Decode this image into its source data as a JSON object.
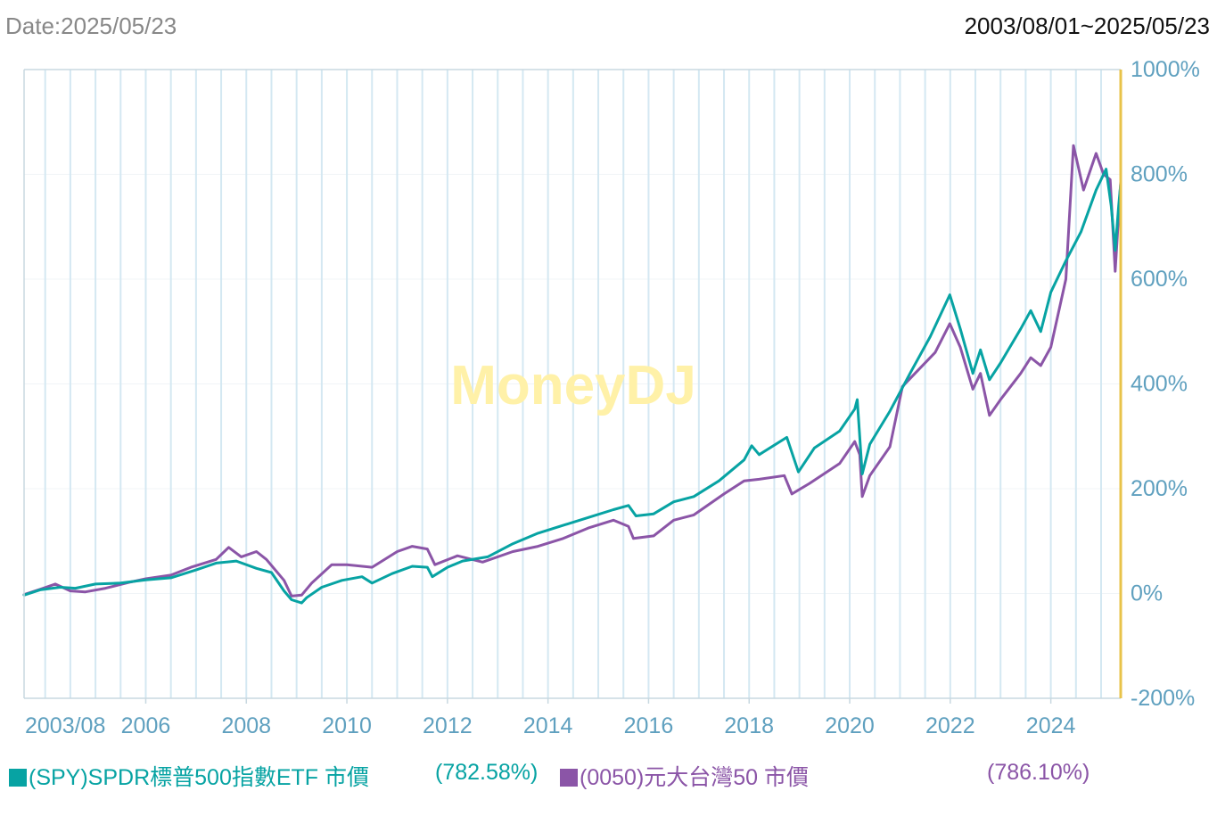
{
  "header": {
    "date_label": "Date:2025/05/23",
    "range_label": "2003/08/01~2025/05/23"
  },
  "watermark": "MoneyDJ",
  "legend": {
    "spy_label": "(SPY)SPDR標普500指數ETF 市價",
    "spy_return": "(782.58%)",
    "etf0050_label": "(0050)元大台灣50 市價",
    "etf0050_return": "(786.10%)"
  },
  "colors": {
    "spy": "#07a3a3",
    "etf0050": "#8b55a7",
    "axis_text": "#5fa0bf",
    "right_axis": "#e8c34a",
    "grid_vertical": "#d4e8f2",
    "grid_horizontal": "#f0f4f7",
    "watermark": "#fff1a8"
  },
  "chart_data": {
    "type": "line",
    "title": "",
    "xlabel": "",
    "ylabel": "",
    "x_ticks": [
      "2003/08",
      "2006",
      "2008",
      "2010",
      "2012",
      "2014",
      "2016",
      "2018",
      "2020",
      "2022",
      "2024"
    ],
    "y_ticks": [
      "1000%",
      "800%",
      "600%",
      "400%",
      "200%",
      "0%",
      "-200%"
    ],
    "xlim": [
      2003.58,
      2025.39
    ],
    "ylim": [
      -200,
      1000
    ],
    "y_unit": "%",
    "grid": true,
    "legend_position": "bottom",
    "series": [
      {
        "name": "(SPY)SPDR標普500指數ETF 市價",
        "color_key": "spy",
        "points": [
          [
            2003.58,
            -3
          ],
          [
            2003.9,
            7
          ],
          [
            2004.3,
            12
          ],
          [
            2004.6,
            10
          ],
          [
            2005.0,
            18
          ],
          [
            2005.5,
            20
          ],
          [
            2006.0,
            26
          ],
          [
            2006.5,
            30
          ],
          [
            2007.0,
            45
          ],
          [
            2007.4,
            58
          ],
          [
            2007.8,
            62
          ],
          [
            2008.2,
            48
          ],
          [
            2008.5,
            40
          ],
          [
            2008.75,
            5
          ],
          [
            2008.9,
            -12
          ],
          [
            2009.1,
            -18
          ],
          [
            2009.2,
            -8
          ],
          [
            2009.5,
            12
          ],
          [
            2009.9,
            25
          ],
          [
            2010.3,
            32
          ],
          [
            2010.5,
            20
          ],
          [
            2010.9,
            38
          ],
          [
            2011.3,
            52
          ],
          [
            2011.6,
            50
          ],
          [
            2011.7,
            32
          ],
          [
            2012.0,
            50
          ],
          [
            2012.3,
            62
          ],
          [
            2012.8,
            70
          ],
          [
            2013.3,
            95
          ],
          [
            2013.8,
            115
          ],
          [
            2014.3,
            130
          ],
          [
            2014.8,
            145
          ],
          [
            2015.3,
            160
          ],
          [
            2015.6,
            168
          ],
          [
            2015.75,
            148
          ],
          [
            2016.1,
            152
          ],
          [
            2016.5,
            175
          ],
          [
            2016.9,
            185
          ],
          [
            2017.4,
            215
          ],
          [
            2017.9,
            255
          ],
          [
            2018.05,
            282
          ],
          [
            2018.2,
            265
          ],
          [
            2018.75,
            298
          ],
          [
            2018.98,
            232
          ],
          [
            2019.3,
            278
          ],
          [
            2019.8,
            310
          ],
          [
            2020.1,
            352
          ],
          [
            2020.15,
            370
          ],
          [
            2020.25,
            228
          ],
          [
            2020.4,
            285
          ],
          [
            2020.8,
            348
          ],
          [
            2021.2,
            420
          ],
          [
            2021.6,
            490
          ],
          [
            2021.99,
            570
          ],
          [
            2022.2,
            505
          ],
          [
            2022.45,
            420
          ],
          [
            2022.6,
            465
          ],
          [
            2022.78,
            408
          ],
          [
            2023.0,
            440
          ],
          [
            2023.4,
            505
          ],
          [
            2023.6,
            540
          ],
          [
            2023.8,
            500
          ],
          [
            2024.0,
            575
          ],
          [
            2024.3,
            635
          ],
          [
            2024.6,
            690
          ],
          [
            2024.9,
            770
          ],
          [
            2025.1,
            810
          ],
          [
            2025.2,
            740
          ],
          [
            2025.28,
            655
          ],
          [
            2025.35,
            740
          ],
          [
            2025.39,
            782.58
          ]
        ]
      },
      {
        "name": "(0050)元大台灣50 市價",
        "color_key": "etf0050",
        "points": [
          [
            2003.58,
            -2
          ],
          [
            2003.9,
            8
          ],
          [
            2004.2,
            18
          ],
          [
            2004.5,
            5
          ],
          [
            2004.8,
            3
          ],
          [
            2005.2,
            10
          ],
          [
            2005.7,
            22
          ],
          [
            2006.0,
            28
          ],
          [
            2006.5,
            35
          ],
          [
            2006.9,
            50
          ],
          [
            2007.4,
            65
          ],
          [
            2007.65,
            88
          ],
          [
            2007.9,
            70
          ],
          [
            2008.2,
            80
          ],
          [
            2008.4,
            65
          ],
          [
            2008.75,
            25
          ],
          [
            2008.9,
            -5
          ],
          [
            2009.1,
            -3
          ],
          [
            2009.3,
            20
          ],
          [
            2009.7,
            55
          ],
          [
            2010.0,
            55
          ],
          [
            2010.5,
            50
          ],
          [
            2011.0,
            80
          ],
          [
            2011.3,
            90
          ],
          [
            2011.6,
            85
          ],
          [
            2011.75,
            55
          ],
          [
            2012.2,
            72
          ],
          [
            2012.7,
            60
          ],
          [
            2013.3,
            80
          ],
          [
            2013.8,
            90
          ],
          [
            2014.3,
            105
          ],
          [
            2014.8,
            125
          ],
          [
            2015.3,
            140
          ],
          [
            2015.6,
            128
          ],
          [
            2015.7,
            105
          ],
          [
            2016.1,
            110
          ],
          [
            2016.5,
            140
          ],
          [
            2016.9,
            150
          ],
          [
            2017.5,
            190
          ],
          [
            2017.9,
            215
          ],
          [
            2018.2,
            218
          ],
          [
            2018.7,
            225
          ],
          [
            2018.85,
            190
          ],
          [
            2019.2,
            210
          ],
          [
            2019.8,
            248
          ],
          [
            2020.1,
            290
          ],
          [
            2020.2,
            265
          ],
          [
            2020.25,
            185
          ],
          [
            2020.4,
            225
          ],
          [
            2020.8,
            280
          ],
          [
            2021.05,
            395
          ],
          [
            2021.3,
            420
          ],
          [
            2021.7,
            460
          ],
          [
            2021.99,
            515
          ],
          [
            2022.2,
            470
          ],
          [
            2022.45,
            390
          ],
          [
            2022.6,
            420
          ],
          [
            2022.78,
            340
          ],
          [
            2023.0,
            370
          ],
          [
            2023.4,
            420
          ],
          [
            2023.6,
            450
          ],
          [
            2023.8,
            435
          ],
          [
            2024.0,
            470
          ],
          [
            2024.3,
            600
          ],
          [
            2024.45,
            855
          ],
          [
            2024.65,
            770
          ],
          [
            2024.9,
            840
          ],
          [
            2025.05,
            800
          ],
          [
            2025.18,
            790
          ],
          [
            2025.28,
            615
          ],
          [
            2025.39,
            786.1
          ]
        ]
      }
    ]
  }
}
